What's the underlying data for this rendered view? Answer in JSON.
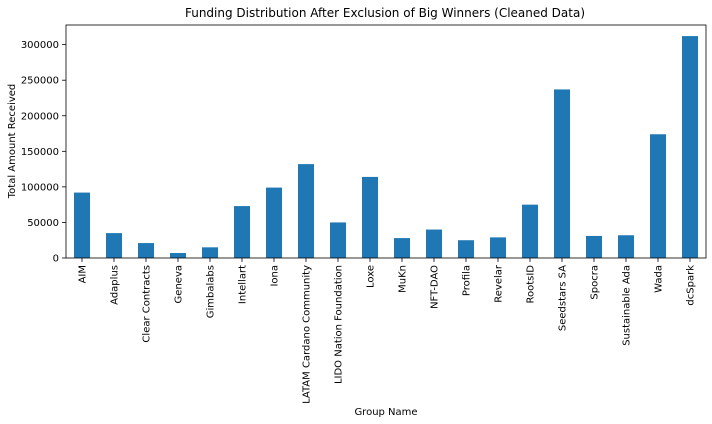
{
  "chart_data": {
    "type": "bar",
    "title": "Funding Distribution After Exclusion of Big Winners (Cleaned Data)",
    "xlabel": "Group Name",
    "ylabel": "Total Amount Received",
    "categories": [
      "AIM",
      "Adaplus",
      "Clear Contracts",
      "Geneva",
      "Gimbalabs",
      "Intellart",
      "Iona",
      "LATAM Cardano Community",
      "LIDO Nation Foundation",
      "Loxe",
      "MuKn",
      "NFT-DAO",
      "Profila",
      "Revelar",
      "RootsID",
      "Seedstars SA",
      "Spocra",
      "Sustainable Ada",
      "Wada",
      "dcSpark"
    ],
    "values": [
      92000,
      35000,
      21000,
      7000,
      15000,
      73000,
      99000,
      132000,
      50000,
      114000,
      28000,
      40000,
      25000,
      29000,
      75000,
      237000,
      31000,
      32000,
      174000,
      312000
    ],
    "ylim": [
      0,
      327600
    ],
    "yticks": [
      0,
      50000,
      100000,
      150000,
      200000,
      250000,
      300000
    ],
    "ytick_labels": [
      "0",
      "50000",
      "100000",
      "150000",
      "200000",
      "250000",
      "300000"
    ],
    "bar_color": "#1f77b4",
    "grid": false,
    "legend": "none"
  }
}
